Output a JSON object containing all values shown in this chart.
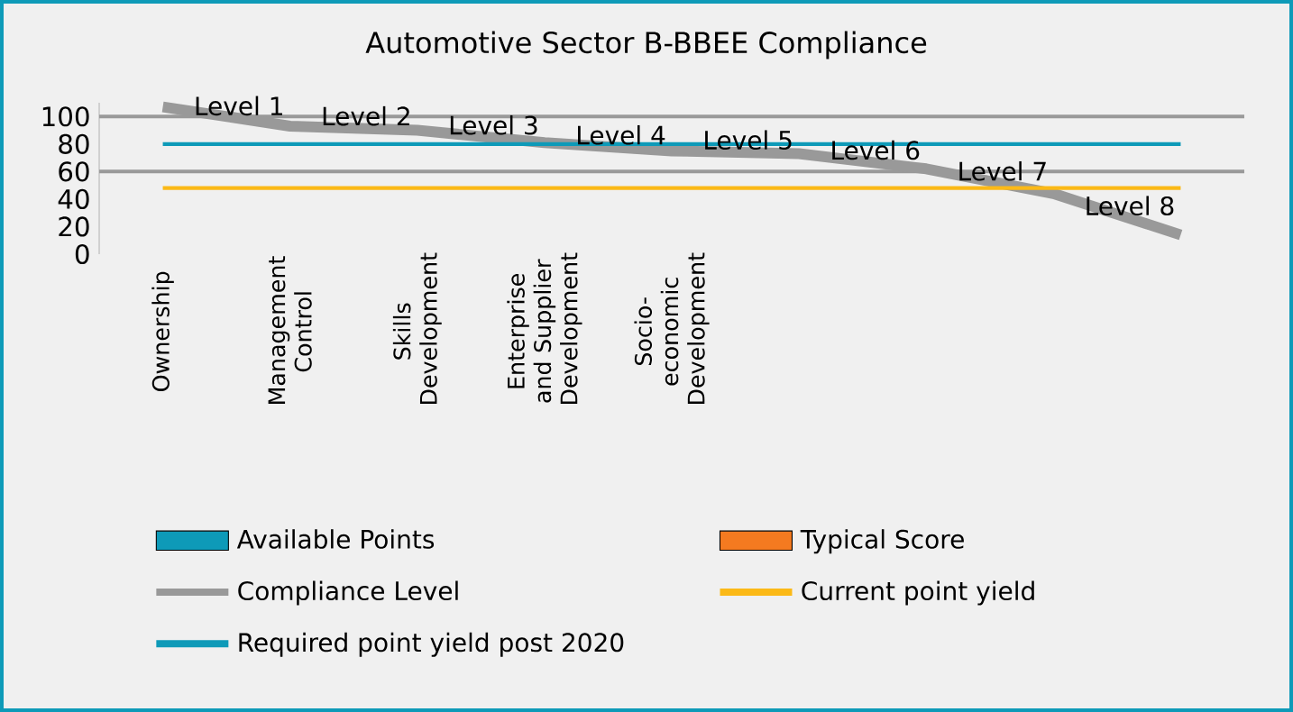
{
  "chart_data": {
    "type": "line",
    "title": "Automotive Sector B-BBEE Compliance",
    "categories": [
      "Ownership",
      "Management Control",
      "Skills Development",
      "Enterprise and Supplier Development",
      "Socio-economic Development",
      null,
      null,
      null,
      null
    ],
    "series": [
      {
        "name": "Available Points",
        "type": "bar",
        "color": "#0e9ab8",
        "values": [
          null,
          null,
          null,
          null,
          null,
          null,
          null,
          null,
          null
        ]
      },
      {
        "name": "Typical Score",
        "type": "bar",
        "color": "#f47a20",
        "values": [
          null,
          null,
          null,
          null,
          null,
          null,
          null,
          null,
          null
        ]
      },
      {
        "name": "Compliance Level",
        "color": "#999999",
        "values": [
          107,
          93,
          90,
          81,
          75,
          73,
          62,
          44,
          14
        ]
      },
      {
        "name": "Current point yield",
        "color": "#fbb917",
        "values": [
          48,
          48,
          48,
          48,
          48,
          48,
          48,
          48,
          48
        ]
      },
      {
        "name": "Required point yield post 2020",
        "color": "#0e9ab8",
        "values": [
          80,
          80,
          80,
          80,
          80,
          80,
          80,
          80,
          80
        ]
      }
    ],
    "ylim": [
      0,
      110
    ],
    "yticks": [
      0,
      20,
      40,
      60,
      80,
      100
    ],
    "ref_lines": [
      {
        "axis": "y",
        "value": 100,
        "color": "#999999"
      },
      {
        "axis": "y",
        "value": 60,
        "color": "#999999"
      }
    ],
    "annotations": [
      "Level 1",
      "Level 2",
      "Level 3",
      "Level 4",
      "Level 5",
      "Level 6",
      "Level 7",
      "Level 8"
    ],
    "legend": "bottom",
    "grid": false
  }
}
